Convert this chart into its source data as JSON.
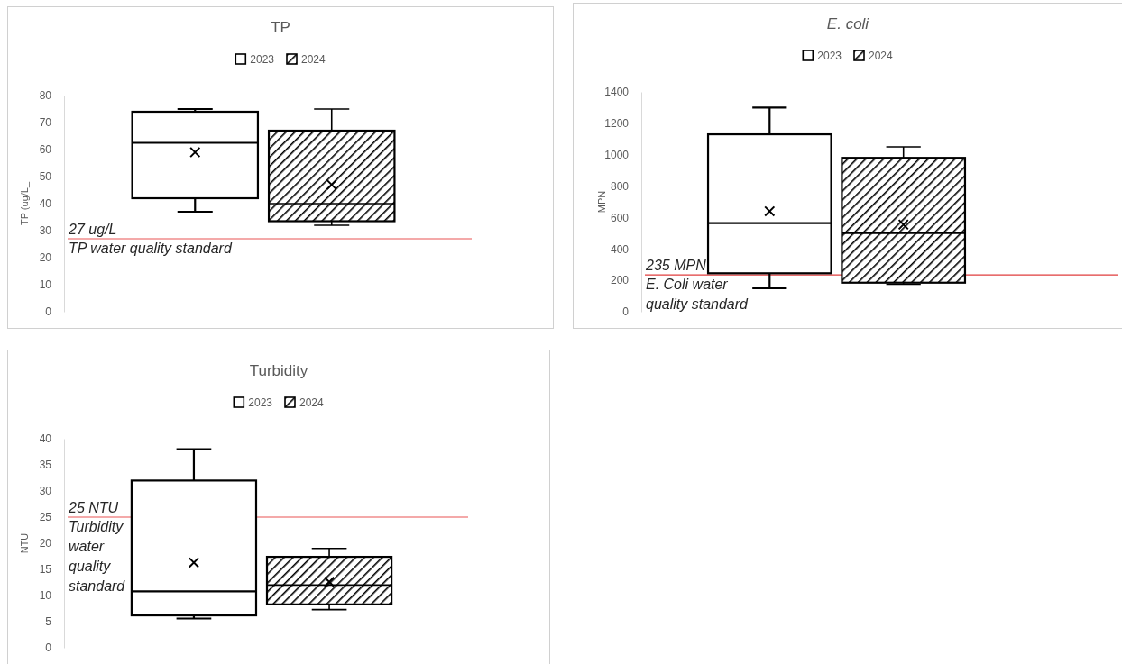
{
  "chart_data": [
    {
      "type": "box",
      "title": "TP",
      "ylabel": "TP (ug/L_",
      "categories": [
        null
      ],
      "ylim": [
        0,
        80
      ],
      "yticks": [
        0,
        10,
        20,
        30,
        40,
        50,
        60,
        70,
        80
      ],
      "tick_labels": "y",
      "legend": "top",
      "marker": "cross",
      "series": [
        {
          "name": "2023",
          "color": "#ffffff",
          "boxes": [
            {
              "low": 37,
              "q1": 42,
              "median": 62.5,
              "q3": 74,
              "high": 75,
              "mean": 59
            }
          ]
        },
        {
          "name": "2024",
          "color": "#000000",
          "boxes": [
            {
              "low": 32,
              "q1": 33.5,
              "median": 40,
              "q3": 67,
              "high": 75,
              "mean": 47
            }
          ]
        }
      ],
      "ref_lines": [
        {
          "axis": "y",
          "value": 27,
          "label": "27 ug/L\nTP water quality standard",
          "color": "#f08c8c"
        }
      ]
    },
    {
      "type": "box",
      "title": "E. coli",
      "ylabel": "MPN",
      "categories": [
        null
      ],
      "ylim": [
        0,
        1400
      ],
      "yticks": [
        0,
        200,
        400,
        600,
        800,
        1000,
        1200,
        1400
      ],
      "tick_labels": "y",
      "legend": "top",
      "marker": "cross",
      "series": [
        {
          "name": "2023",
          "color": "#ffffff",
          "boxes": [
            {
              "low": 150,
              "q1": 245,
              "median": 565,
              "q3": 1130,
              "high": 1300,
              "mean": 640
            }
          ]
        },
        {
          "name": "2024",
          "color": "#000000",
          "boxes": [
            {
              "low": 175,
              "q1": 185,
              "median": 500,
              "q3": 980,
              "high": 1050,
              "mean": 555
            }
          ]
        }
      ],
      "ref_lines": [
        {
          "axis": "y",
          "value": 235,
          "label": "235 MPN\nE. Coli water\nquality standard",
          "color": "#e03c3c"
        }
      ]
    },
    {
      "type": "box",
      "title": "Turbidity",
      "ylabel": "NTU",
      "categories": [
        null
      ],
      "ylim": [
        0,
        40
      ],
      "yticks": [
        0,
        5,
        10,
        15,
        20,
        25,
        30,
        35,
        40
      ],
      "tick_labels": "y",
      "legend": "top",
      "marker": "cross",
      "series": [
        {
          "name": "2023",
          "color": "#ffffff",
          "boxes": [
            {
              "low": 5.6,
              "q1": 6.2,
              "median": 10.8,
              "q3": 32,
              "high": 38,
              "mean": 16.3
            }
          ]
        },
        {
          "name": "2024",
          "color": "#000000",
          "boxes": [
            {
              "low": 7.3,
              "q1": 8.3,
              "median": 12,
              "q3": 17.4,
              "high": 19,
              "mean": 12.6
            }
          ]
        }
      ],
      "ref_lines": [
        {
          "axis": "y",
          "value": 25,
          "label": "25 NTU\nTurbidity\nwater\nquality\nstandard",
          "color": "#f08c8c"
        }
      ]
    }
  ]
}
